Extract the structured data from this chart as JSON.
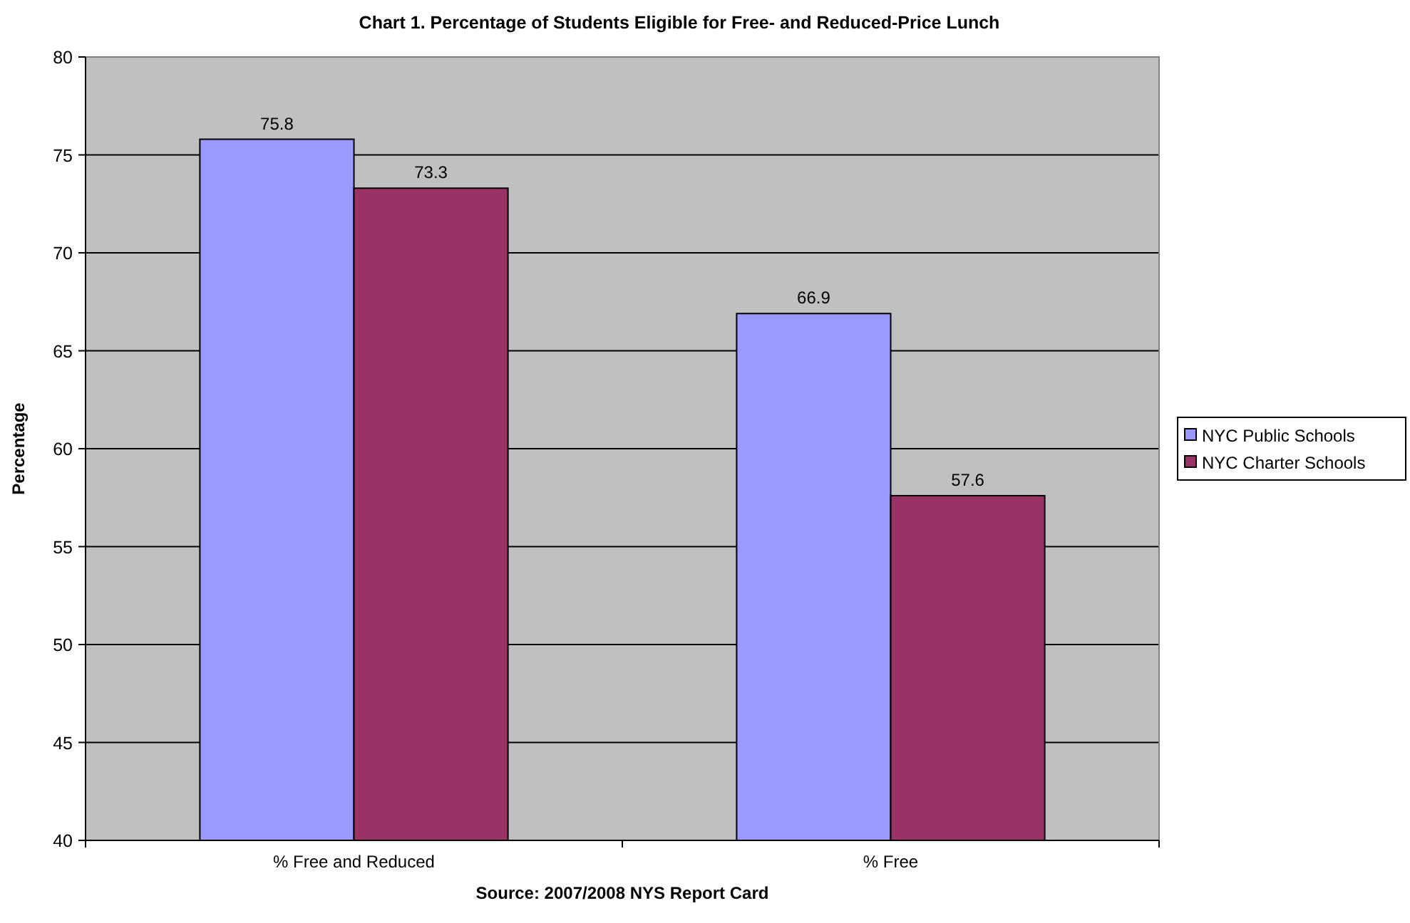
{
  "chart_data": {
    "type": "bar",
    "title": "Chart 1. Percentage of Students Eligible for Free- and Reduced-Price Lunch",
    "ylabel": "Percentage",
    "annotations": [
      "Source:  2007/2008 NYS Report Card"
    ],
    "categories": [
      "% Free and Reduced",
      "% Free"
    ],
    "series": [
      {
        "name": "NYC Public Schools",
        "color": "#9999ff",
        "values": [
          75.8,
          66.9
        ]
      },
      {
        "name": "NYC Charter Schools",
        "color": "#993366",
        "values": [
          73.3,
          57.6
        ]
      }
    ],
    "ylim": [
      40,
      80
    ],
    "yticks": [
      40,
      45,
      50,
      55,
      60,
      65,
      70,
      75,
      80
    ],
    "grid": "y",
    "legend": "right",
    "data_labels": true
  }
}
